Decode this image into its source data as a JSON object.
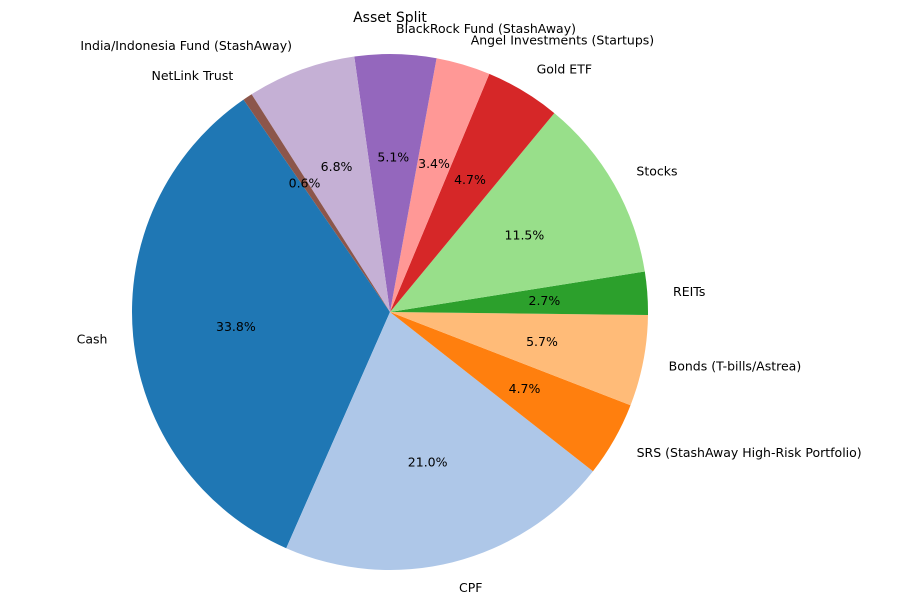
{
  "chart_data": {
    "type": "pie",
    "title": "Asset Split",
    "start_angle_deg": 124.6,
    "direction": "counterclockwise",
    "slices": [
      {
        "label": "Cash",
        "value": 33.8,
        "pct_label": "33.8%",
        "color": "#1f77b4"
      },
      {
        "label": "CPF",
        "value": 21.0,
        "pct_label": "21.0%",
        "color": "#aec7e8"
      },
      {
        "label": "SRS (StashAway High-Risk Portfolio)",
        "value": 4.7,
        "pct_label": "4.7%",
        "color": "#ff7f0e"
      },
      {
        "label": "Bonds (T-bills/Astrea)",
        "value": 5.7,
        "pct_label": "5.7%",
        "color": "#ffbb78"
      },
      {
        "label": "REITs",
        "value": 2.7,
        "pct_label": "2.7%",
        "color": "#2ca02c"
      },
      {
        "label": "Stocks",
        "value": 11.5,
        "pct_label": "11.5%",
        "color": "#98df8a"
      },
      {
        "label": "Gold ETF",
        "value": 4.7,
        "pct_label": "4.7%",
        "color": "#d62728"
      },
      {
        "label": "Angel Investments (Startups)",
        "value": 3.4,
        "pct_label": "3.4%",
        "color": "#ff9896"
      },
      {
        "label": "BlackRock Fund (StashAway)",
        "value": 5.1,
        "pct_label": "5.1%",
        "color": "#9467bd"
      },
      {
        "label": "India/Indonesia Fund (StashAway)",
        "value": 6.8,
        "pct_label": "6.8%",
        "color": "#c5b0d5"
      },
      {
        "label": "NetLink Trust",
        "value": 0.6,
        "pct_label": "0.6%",
        "color": "#8c564b"
      }
    ]
  }
}
